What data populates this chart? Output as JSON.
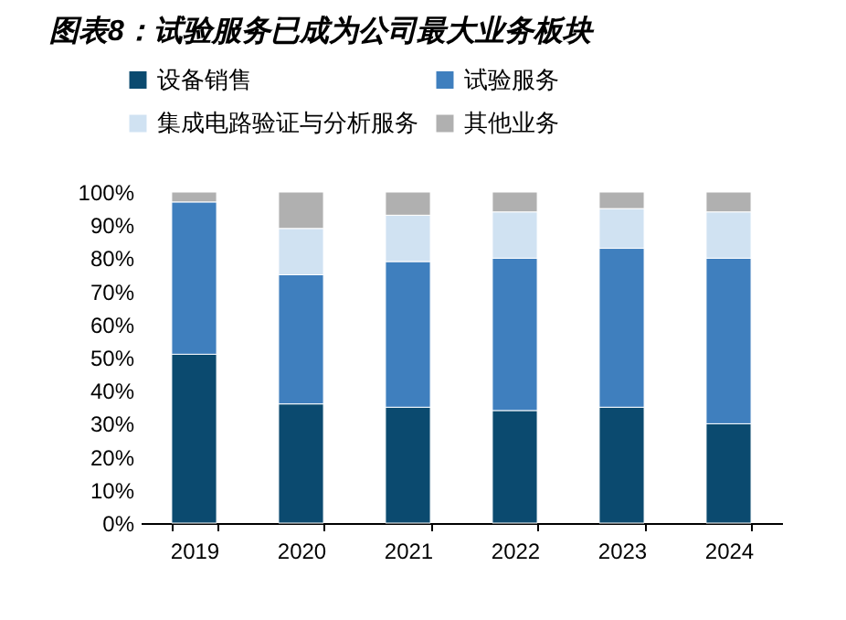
{
  "chart_data": {
    "type": "bar",
    "title": "图表8：试验服务已成为公司最大业务板块",
    "categories": [
      "2019",
      "2020",
      "2021",
      "2022",
      "2023",
      "2024"
    ],
    "stacked": true,
    "legend": "top",
    "series": [
      {
        "name": "设备销售",
        "color": "#0b4a6f",
        "values": [
          51,
          36,
          35,
          34,
          35,
          30
        ]
      },
      {
        "name": "试验服务",
        "color": "#3f7fbe",
        "values": [
          46,
          39,
          44,
          46,
          48,
          50
        ]
      },
      {
        "name": "集成电路验证与分析服务",
        "color": "#d0e2f2",
        "values": [
          null,
          14,
          14,
          14,
          12,
          14
        ]
      },
      {
        "name": "其他业务",
        "color": "#b0b0b0",
        "values": [
          3,
          11,
          7,
          6,
          5,
          6
        ]
      }
    ],
    "ylim": [
      0,
      100
    ],
    "yticks": [
      {
        "value": 0,
        "label": "0%"
      },
      {
        "value": 10,
        "label": "10%"
      },
      {
        "value": 20,
        "label": "20%"
      },
      {
        "value": 30,
        "label": "30%"
      },
      {
        "value": 40,
        "label": "40%"
      },
      {
        "value": 50,
        "label": "50%"
      },
      {
        "value": 60,
        "label": "60%"
      },
      {
        "value": 70,
        "label": "70%"
      },
      {
        "value": 80,
        "label": "80%"
      },
      {
        "value": 90,
        "label": "90%"
      },
      {
        "value": 100,
        "label": "100%"
      }
    ]
  }
}
